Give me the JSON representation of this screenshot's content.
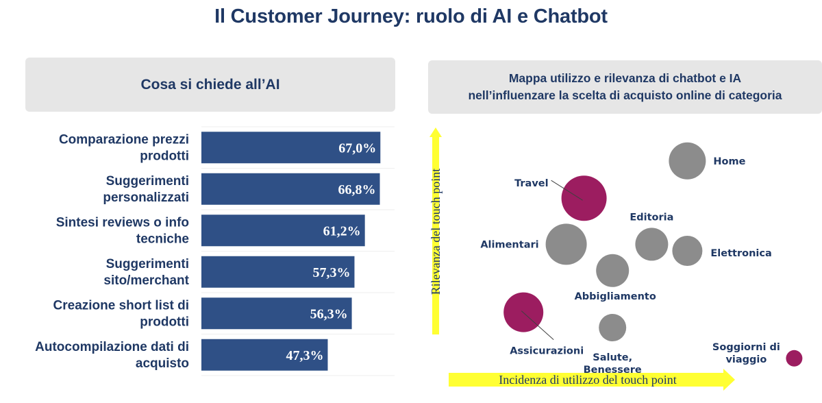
{
  "title": "Il Customer Journey: ruolo di AI e Chatbot",
  "colors": {
    "title": "#1f3864",
    "bar": "#2f5086",
    "accent": "#9c1d60",
    "neutral": "#8c8c8c",
    "arrow": "#ffff33"
  },
  "chart_data": [
    {
      "type": "bar",
      "orientation": "horizontal",
      "title": "Cosa si chiede all’AI",
      "categories": [
        [
          "Comparazione prezzi",
          "prodotti"
        ],
        [
          "Suggerimenti",
          "personalizzati"
        ],
        [
          "Sintesi reviews o info",
          "tecniche"
        ],
        [
          "Suggerimenti",
          "sito/merchant"
        ],
        [
          "Creazione short list di",
          "prodotti"
        ],
        [
          "Autocompilazione dati di",
          "acquisto"
        ]
      ],
      "values": [
        67.0,
        66.8,
        61.2,
        57.3,
        56.3,
        47.3
      ],
      "value_labels": [
        "67,0%",
        "66,8%",
        "61,2%",
        "57,3%",
        "56,3%",
        "47,3%"
      ],
      "xlim": [
        0,
        100
      ]
    },
    {
      "type": "scatter",
      "title": [
        "Mappa utilizzo e rilevanza di chatbot e IA",
        "nell’influenzare la scelta di acquisto online di categoria"
      ],
      "xlabel": "Incidenza di utilizzo del touch point",
      "ylabel": "Rilevanza del touch point",
      "xlim": [
        0,
        100
      ],
      "ylim": [
        0,
        100
      ],
      "points": [
        {
          "label": "Home",
          "x": 67,
          "y": 86,
          "size": 54,
          "highlight": false
        },
        {
          "label": "Travel",
          "x": 38,
          "y": 69,
          "size": 66,
          "highlight": true
        },
        {
          "label": "Alimentari",
          "x": 33,
          "y": 48,
          "size": 60,
          "highlight": false
        },
        {
          "label": "Editoria",
          "x": 57,
          "y": 48,
          "size": 48,
          "highlight": false
        },
        {
          "label": "Elettronica",
          "x": 67,
          "y": 45,
          "size": 44,
          "highlight": false
        },
        {
          "label": "Abbigliamento",
          "x": 46,
          "y": 36,
          "size": 48,
          "highlight": false
        },
        {
          "label": "Assicurazioni",
          "x": 21,
          "y": 17,
          "size": 58,
          "highlight": true
        },
        {
          "label": "Salute, Benessere",
          "x": 46,
          "y": 10,
          "size": 40,
          "highlight": false
        },
        {
          "label": "Soggiorni di viaggio",
          "x": 97,
          "y": -4,
          "size": 24,
          "highlight": true
        }
      ]
    }
  ]
}
